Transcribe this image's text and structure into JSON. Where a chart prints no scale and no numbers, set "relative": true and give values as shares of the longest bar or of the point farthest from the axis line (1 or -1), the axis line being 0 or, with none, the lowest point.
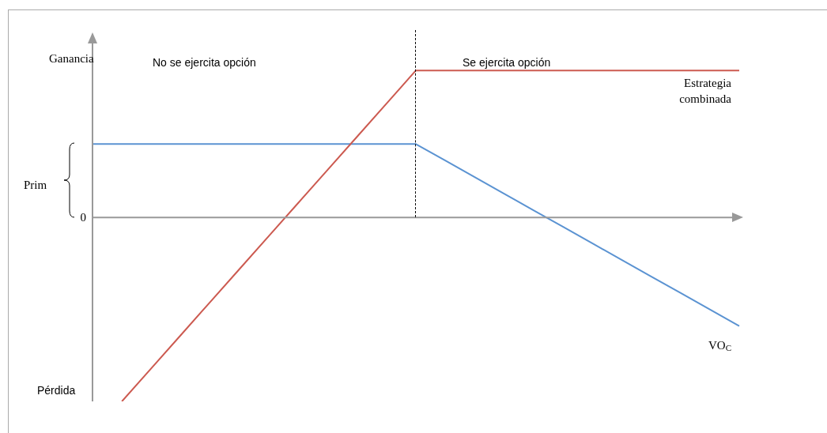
{
  "chart_data": {
    "type": "line",
    "relative": true,
    "legend": false,
    "marker": "none",
    "line_style": "solid",
    "categories": [
      null,
      null,
      null,
      null,
      null,
      null,
      null,
      null,
      null,
      null,
      null,
      null,
      null,
      null,
      null,
      null,
      null,
      null,
      null,
      null,
      null,
      null,
      null
    ],
    "series": [
      {
        "name": "Estrategia combinada",
        "color": "#cc5a50",
        "values": [
          null,
          -1,
          -0.82,
          -0.64,
          -0.46,
          -0.28,
          -0.1,
          0.08,
          0.26,
          0.44,
          0.62,
          0.8,
          0.8,
          0.8,
          0.8,
          0.8,
          0.8,
          0.8,
          0.8,
          0.8,
          0.8,
          0.8,
          0.8
        ]
      },
      {
        "name": "VO$_{C}$",
        "color": "#5b93d2",
        "values": [
          0.4,
          0.4,
          0.4,
          0.4,
          0.4,
          0.4,
          0.4,
          0.4,
          0.4,
          0.4,
          0.4,
          0.4,
          0.31,
          0.22,
          0.13,
          0.04,
          -0.05,
          -0.14,
          -0.23,
          -0.32,
          -0.41,
          -0.5,
          -0.59
        ]
      }
    ],
    "annotations": [
      "Ganancia",
      "No se ejercita opción",
      "Se ejercita opción",
      "Pérdida",
      "Prim",
      "0"
    ]
  }
}
